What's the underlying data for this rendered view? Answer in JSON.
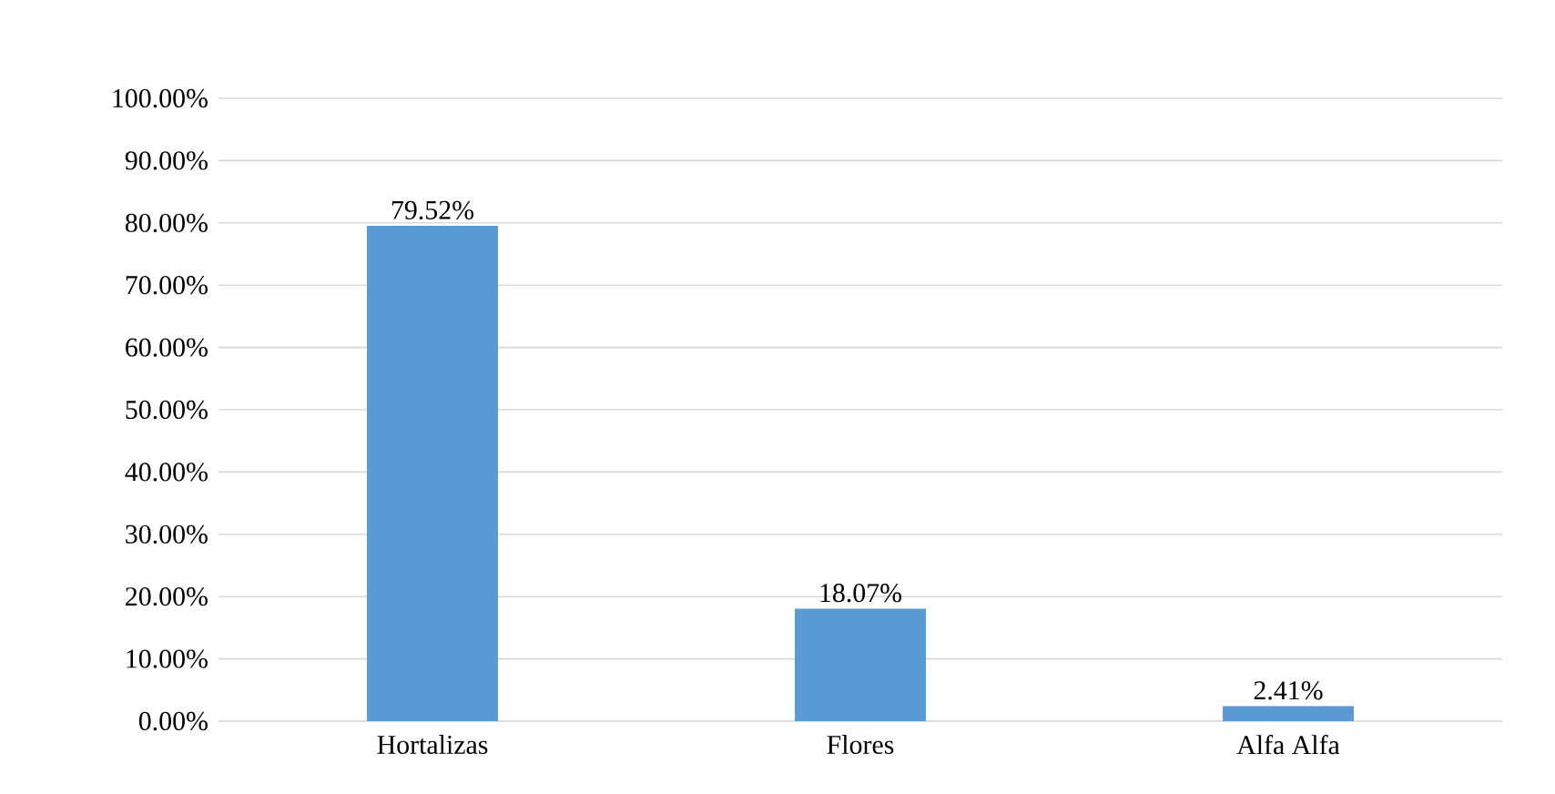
{
  "chart_data": {
    "type": "bar",
    "categories": [
      "Hortalizas",
      "Flores",
      "Alfa Alfa"
    ],
    "values": [
      79.52,
      18.07,
      2.41
    ],
    "value_labels": [
      "79.52%",
      "18.07%",
      "2.41%"
    ],
    "color": "#5b9bd5",
    "ylim": [
      0,
      100
    ],
    "yticks": [
      {
        "value": 0,
        "label": "0.00%"
      },
      {
        "value": 10,
        "label": "10.00%"
      },
      {
        "value": 20,
        "label": "20.00%"
      },
      {
        "value": 30,
        "label": "30.00%"
      },
      {
        "value": 40,
        "label": "40.00%"
      },
      {
        "value": 50,
        "label": "50.00%"
      },
      {
        "value": 60,
        "label": "60.00%"
      },
      {
        "value": 70,
        "label": "70.00%"
      },
      {
        "value": 80,
        "label": "80.00%"
      },
      {
        "value": 90,
        "label": "90.00%"
      },
      {
        "value": 100,
        "label": "100.00%"
      }
    ],
    "grid": "y"
  }
}
